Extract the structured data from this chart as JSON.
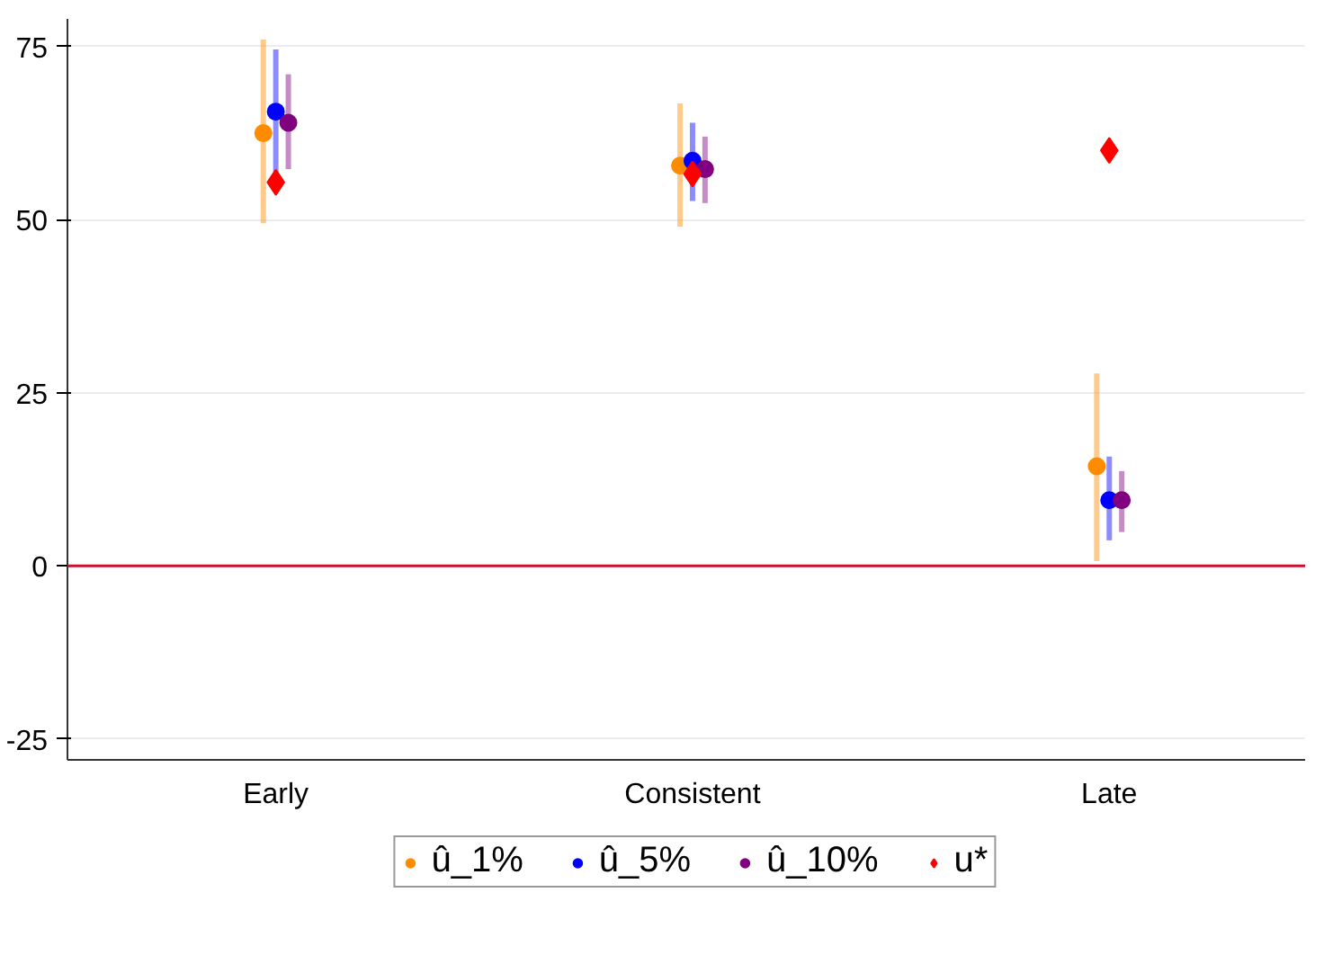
{
  "chart_data": {
    "type": "scatter",
    "categories": [
      "Early",
      "Consistent",
      "Late"
    ],
    "series": [
      {
        "name": "û_1%",
        "color": "#ff8c00",
        "marker": "circle",
        "values": [
          62.5,
          57.8,
          14.4
        ],
        "errors": [
          [
            49.5,
            76
          ],
          [
            49,
            66.8
          ],
          [
            0.7,
            27.8
          ]
        ]
      },
      {
        "name": "û_5%",
        "color": "#0000ff",
        "marker": "circle",
        "values": [
          65.6,
          58.5,
          9.5
        ],
        "errors": [
          [
            56.5,
            74.6
          ],
          [
            52.7,
            64
          ],
          [
            3.7,
            15.8
          ]
        ]
      },
      {
        "name": "û_10%",
        "color": "#800080",
        "marker": "circle",
        "values": [
          64,
          57.3,
          9.5
        ],
        "errors": [
          [
            57.3,
            71
          ],
          [
            52.4,
            62
          ],
          [
            4.9,
            13.7
          ]
        ]
      },
      {
        "name": "u*",
        "color": "#ff0000",
        "marker": "diamond",
        "values": [
          55.4,
          56.6,
          60
        ]
      }
    ],
    "ylim": [
      -28,
      79
    ],
    "yticks": [
      -25,
      0,
      25,
      50,
      75
    ],
    "ref_lines": [
      {
        "axis": "y",
        "value": 0,
        "color": "#c8102e"
      }
    ],
    "grid": "y",
    "legend": "bottom"
  }
}
